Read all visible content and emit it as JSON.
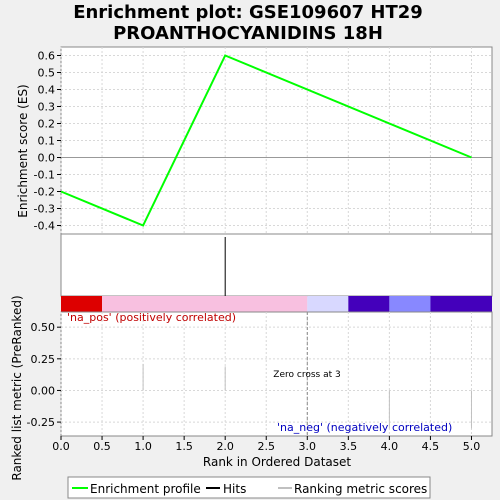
{
  "colors": {
    "background": "#f0f0f0",
    "plot_bg": "#ffffff",
    "es_line": "#00ff00",
    "grid": "#d8d8d8",
    "pos_label": "#c00000",
    "neg_label": "#0000c0",
    "hits": "#000000",
    "ranking": "#c0c0c0"
  },
  "chart_data": [
    {
      "type": "line",
      "title": "Enrichment plot: GSE109607 HT29\nPROANTHOCYANIDINS 18H",
      "title_lines": [
        "Enrichment plot: GSE109607 HT29",
        "PROANTHOCYANIDINS 18H"
      ],
      "ylabel": "Enrichment score (ES)",
      "xlim": [
        0,
        5.25
      ],
      "ylim": [
        -0.45,
        0.65
      ],
      "yticks": [
        -0.4,
        -0.3,
        -0.2,
        -0.1,
        0.0,
        0.1,
        0.2,
        0.3,
        0.4,
        0.5,
        0.6
      ],
      "ytick_labels": [
        "-0.4",
        "-0.3",
        "-0.2",
        "-0.1",
        "0.0",
        "0.1",
        "0.2",
        "0.3",
        "0.4",
        "0.5",
        "0.6"
      ],
      "grid": true,
      "series": [
        {
          "name": "Enrichment profile",
          "x": [
            0,
            1,
            2,
            5
          ],
          "y": [
            -0.2,
            -0.4,
            0.6,
            0.0
          ]
        }
      ]
    },
    {
      "type": "bar",
      "name": "hits",
      "hit_positions": [
        2
      ],
      "color_bands": [
        {
          "x_start": 0.0,
          "x_end": 0.5,
          "color": "#dd0000"
        },
        {
          "x_start": 0.5,
          "x_end": 3.0,
          "color": "#f8c0e0"
        },
        {
          "x_start": 3.0,
          "x_end": 3.5,
          "color": "#d8d8ff"
        },
        {
          "x_start": 3.5,
          "x_end": 4.0,
          "color": "#4400bb"
        },
        {
          "x_start": 4.0,
          "x_end": 4.5,
          "color": "#8888ff"
        },
        {
          "x_start": 4.5,
          "x_end": 5.25,
          "color": "#4400bb"
        }
      ]
    },
    {
      "type": "bar",
      "ylabel": "Ranked list metric (PreRanked)",
      "xlabel": "Rank in Ordered Dataset",
      "xlim": [
        0,
        5.25
      ],
      "ylim": [
        -0.36,
        0.62
      ],
      "yticks": [
        -0.25,
        0.0,
        0.25,
        0.5
      ],
      "ytick_labels": [
        "-0.25",
        "0.00",
        "0.25",
        "0.50"
      ],
      "xticks": [
        0,
        0.5,
        1,
        1.5,
        2,
        2.5,
        3,
        3.5,
        4,
        4.5,
        5
      ],
      "xtick_labels": [
        "0.0",
        "0.5",
        "1.0",
        "1.5",
        "2.0",
        "2.5",
        "3.0",
        "3.5",
        "4.0",
        "4.5",
        "5.0"
      ],
      "grid": true,
      "metric_bars": [
        {
          "x": 1,
          "value": 0.21
        },
        {
          "x": 2,
          "value": 0.19
        },
        {
          "x": 4,
          "value": -0.3
        },
        {
          "x": 5,
          "value": -0.3
        }
      ],
      "zero_cross_x": 3,
      "annotations": {
        "pos": "'na_pos' (positively correlated)",
        "neg": "'na_neg' (negatively correlated)",
        "zero_cross": "Zero cross at 3"
      }
    }
  ],
  "legend": {
    "placement": "bottom",
    "items": [
      {
        "label": "Enrichment profile",
        "color": "#00ff00"
      },
      {
        "label": "Hits",
        "color": "#000000"
      },
      {
        "label": "Ranking metric scores",
        "color": "#c0c0c0"
      }
    ]
  }
}
